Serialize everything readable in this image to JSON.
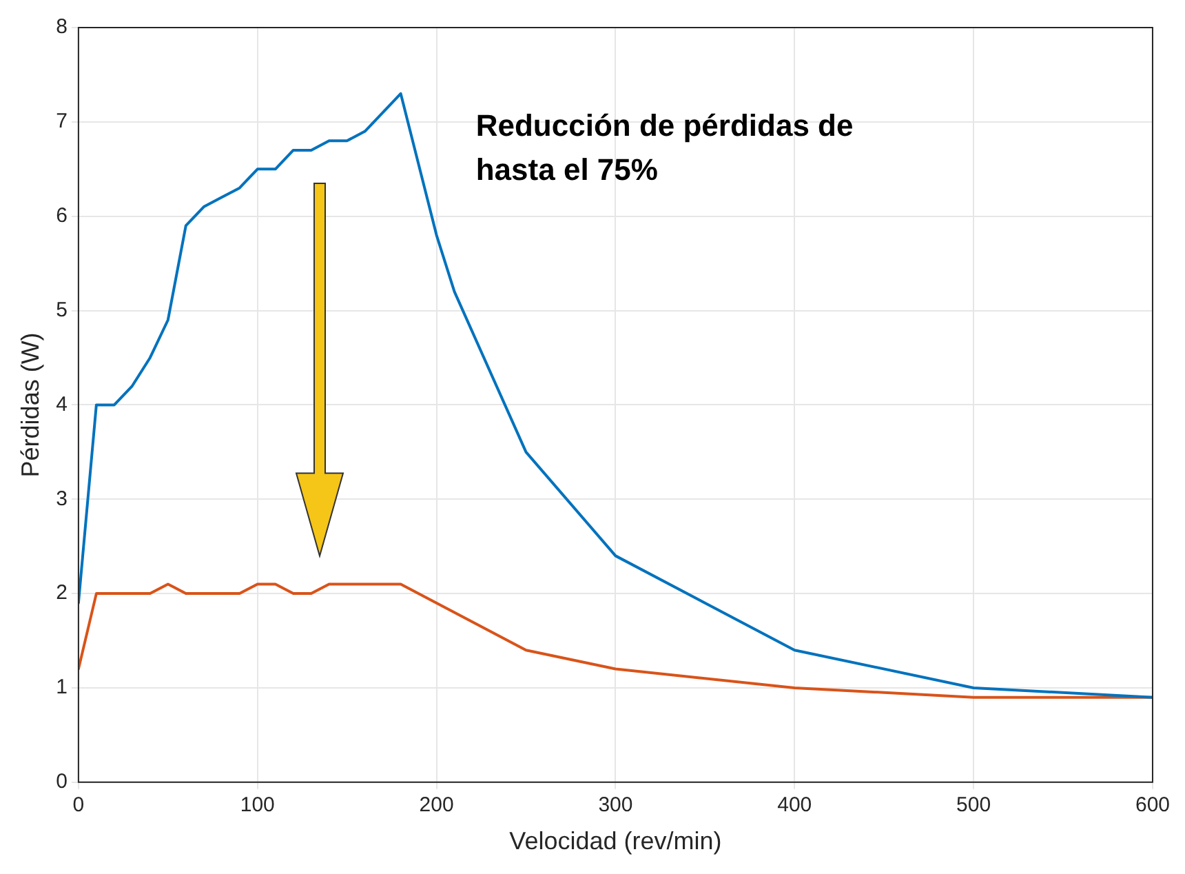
{
  "chart_data": {
    "type": "line",
    "xlabel": "Velocidad (rev/min)",
    "ylabel": "Pérdidas (W)",
    "xlim": [
      0,
      600
    ],
    "xticks": [
      0,
      100,
      200,
      300,
      400,
      500,
      600
    ],
    "ylim": [
      0,
      8
    ],
    "yticks": [
      0,
      1,
      2,
      3,
      4,
      5,
      6,
      7,
      8
    ],
    "grid": true,
    "legend": false,
    "marker": "none",
    "line_style": "solid",
    "annotations": [
      "Reducción de pérdidas de hasta el 75%"
    ],
    "series": [
      {
        "color": "#0072bd",
        "x": [
          0,
          10,
          20,
          30,
          40,
          50,
          60,
          70,
          80,
          90,
          100,
          110,
          120,
          130,
          140,
          150,
          160,
          180,
          200,
          210,
          250,
          300,
          400,
          500,
          600
        ],
        "values": [
          1.9,
          4.0,
          4.0,
          4.2,
          4.5,
          4.9,
          5.9,
          6.1,
          6.2,
          6.3,
          6.5,
          6.5,
          6.7,
          6.7,
          6.8,
          6.8,
          6.9,
          7.3,
          5.8,
          5.2,
          3.5,
          2.4,
          1.4,
          1.0,
          0.9
        ]
      },
      {
        "color": "#d95319",
        "x": [
          0,
          10,
          20,
          30,
          40,
          50,
          60,
          70,
          80,
          90,
          100,
          110,
          120,
          130,
          140,
          150,
          160,
          170,
          180,
          250,
          300,
          400,
          500,
          600
        ],
        "values": [
          1.2,
          2.0,
          2.0,
          2.0,
          2.0,
          2.1,
          2.0,
          2.0,
          2.0,
          2.0,
          2.1,
          2.1,
          2.0,
          2.0,
          2.1,
          2.1,
          2.1,
          2.1,
          2.1,
          1.4,
          1.2,
          1.0,
          0.9,
          0.9
        ]
      }
    ]
  }
}
